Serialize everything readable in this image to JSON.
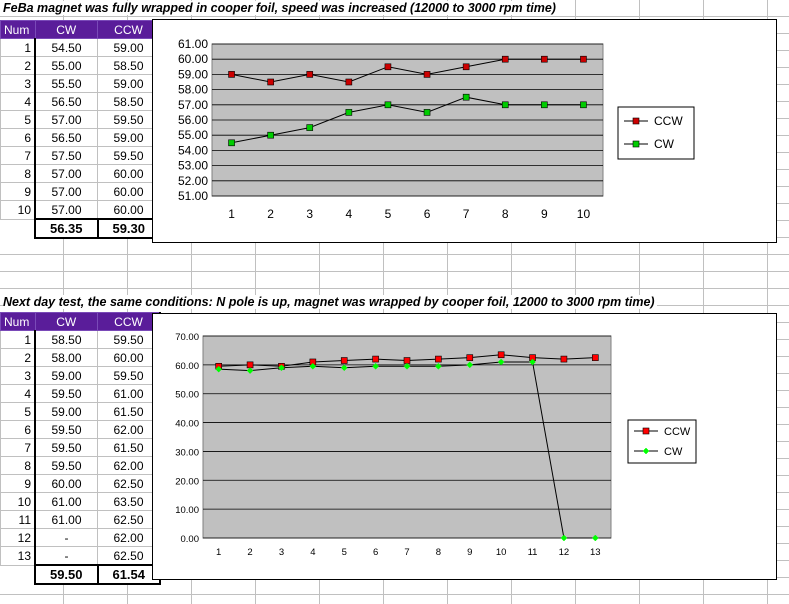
{
  "section1": {
    "title": "FeBa magnet was fully wrapped in cooper foil, speed was increased (12000 to 3000 rpm time)",
    "headers": [
      "Num",
      "CW",
      "CCW"
    ],
    "rows": [
      [
        "1",
        "54.50",
        "59.00"
      ],
      [
        "2",
        "55.00",
        "58.50"
      ],
      [
        "3",
        "55.50",
        "59.00"
      ],
      [
        "4",
        "56.50",
        "58.50"
      ],
      [
        "5",
        "57.00",
        "59.50"
      ],
      [
        "6",
        "56.50",
        "59.00"
      ],
      [
        "7",
        "57.50",
        "59.50"
      ],
      [
        "8",
        "57.00",
        "60.00"
      ],
      [
        "9",
        "57.00",
        "60.00"
      ],
      [
        "10",
        "57.00",
        "60.00"
      ]
    ],
    "totals": [
      "56.35",
      "59.30"
    ]
  },
  "section2": {
    "title": "Next day test, the same conditions:  N pole is up, magnet was wrapped by cooper foil, 12000 to 3000 rpm time)",
    "headers": [
      "Num",
      "CW",
      "CCW"
    ],
    "rows": [
      [
        "1",
        "58.50",
        "59.50"
      ],
      [
        "2",
        "58.00",
        "60.00"
      ],
      [
        "3",
        "59.00",
        "59.50"
      ],
      [
        "4",
        "59.50",
        "61.00"
      ],
      [
        "5",
        "59.00",
        "61.50"
      ],
      [
        "6",
        "59.50",
        "62.00"
      ],
      [
        "7",
        "59.50",
        "61.50"
      ],
      [
        "8",
        "59.50",
        "62.00"
      ],
      [
        "9",
        "60.00",
        "62.50"
      ],
      [
        "10",
        "61.00",
        "63.50"
      ],
      [
        "11",
        "61.00",
        "62.50"
      ],
      [
        "12",
        "-",
        "62.00"
      ],
      [
        "13",
        "-",
        "62.50"
      ]
    ],
    "totals": [
      "59.50",
      "61.54"
    ]
  },
  "chart_data": [
    {
      "type": "line",
      "x": [
        1,
        2,
        3,
        4,
        5,
        6,
        7,
        8,
        9,
        10
      ],
      "series": [
        {
          "name": "CCW",
          "values": [
            59.0,
            58.5,
            59.0,
            58.5,
            59.5,
            59.0,
            59.5,
            60.0,
            60.0,
            60.0
          ],
          "marker": "square",
          "color": "#cc0000"
        },
        {
          "name": "CW",
          "values": [
            54.5,
            55.0,
            55.5,
            56.5,
            57.0,
            56.5,
            57.5,
            57.0,
            57.0,
            57.0
          ],
          "marker": "square",
          "color": "#00cc00"
        }
      ],
      "ylim": [
        51,
        61
      ],
      "ytick_step": 1,
      "ytick_decimals": 2,
      "grid": true,
      "plot_bg": "#c0c0c0",
      "legend": "right",
      "title": "",
      "xlabel": "",
      "ylabel": ""
    },
    {
      "type": "line",
      "x": [
        1,
        2,
        3,
        4,
        5,
        6,
        7,
        8,
        9,
        10,
        11,
        12,
        13
      ],
      "series": [
        {
          "name": "CCW",
          "values": [
            59.5,
            60.0,
            59.5,
            61.0,
            61.5,
            62.0,
            61.5,
            62.0,
            62.5,
            63.5,
            62.5,
            62.0,
            62.5
          ],
          "marker": "square",
          "color": "#ff0000"
        },
        {
          "name": "CW",
          "values": [
            58.5,
            58.0,
            59.0,
            59.5,
            59.0,
            59.5,
            59.5,
            59.5,
            60.0,
            61.0,
            61.0,
            0.0,
            0.0
          ],
          "marker": "diamond",
          "color": "#00ff00"
        }
      ],
      "ylim": [
        0,
        70
      ],
      "ytick_step": 10,
      "ytick_decimals": 2,
      "grid": true,
      "plot_bg": "#c0c0c0",
      "legend": "right",
      "title": "",
      "xlabel": "",
      "ylabel": ""
    }
  ]
}
